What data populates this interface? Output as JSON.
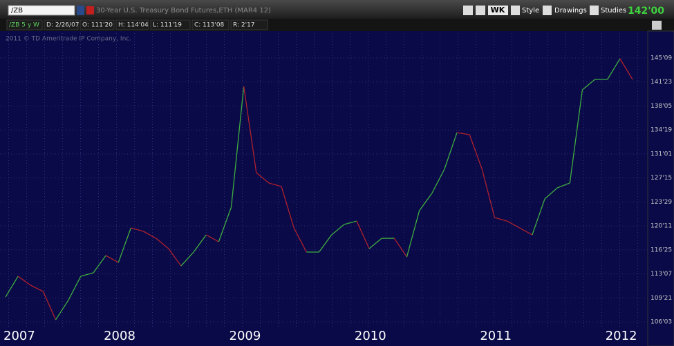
{
  "toolbar": {
    "symbol": "/ZB",
    "description": "30-Year U.S. Treasury Bond Futures,ETH (MAR4 12)",
    "buttons": [
      "WK",
      "Style",
      "Drawings",
      "Studies"
    ],
    "last_price": "142'00"
  },
  "info_bar": [
    "/ZB 5 y W",
    "D: 2/26/07",
    "O: 111'20",
    "H: 114'04",
    "L: 111'19",
    "C: 113'08",
    "R: 2'17"
  ],
  "watermark": "2011 © TD Ameritrade IP Company, Inc.",
  "chart_data": {
    "type": "line",
    "up_color": "#3fae3f",
    "down_color": "#b0202c",
    "grid": true,
    "categories": [
      "2007",
      null,
      null,
      null,
      null,
      null,
      null,
      null,
      "2008",
      null,
      null,
      null,
      null,
      null,
      null,
      null,
      null,
      null,
      "2009",
      null,
      null,
      null,
      null,
      null,
      null,
      null,
      null,
      null,
      "2010",
      null,
      null,
      null,
      null,
      null,
      null,
      null,
      null,
      null,
      "2011",
      null,
      null,
      null,
      null,
      null,
      null,
      null,
      null,
      null,
      "2012",
      null,
      null
    ],
    "values": [
      109.79,
      112.87,
      111.54,
      110.61,
      106.41,
      109.28,
      112.87,
      113.38,
      115.95,
      114.92,
      120.05,
      119.54,
      118.51,
      116.97,
      114.41,
      116.46,
      119.02,
      118.0,
      123.13,
      141.07,
      128.25,
      126.72,
      126.2,
      120.05,
      116.46,
      116.46,
      119.02,
      120.56,
      121.07,
      116.97,
      118.51,
      118.51,
      115.74,
      122.61,
      125.18,
      128.77,
      134.2,
      133.9,
      128.77,
      121.59,
      121.07,
      120.05,
      119.02,
      124.36,
      126.0,
      126.72,
      140.56,
      142.1,
      142.1,
      145.18,
      142.1
    ],
    "ylim": [
      105.49,
      149.28
    ],
    "yticks": [
      {
        "value": 145.28125,
        "label": "145'09"
      },
      {
        "value": 141.71875,
        "label": "141'23"
      },
      {
        "value": 138.15625,
        "label": "138'05"
      },
      {
        "value": 134.59375,
        "label": "134'19"
      },
      {
        "value": 131.03125,
        "label": "131'01"
      },
      {
        "value": 127.46875,
        "label": "127'15"
      },
      {
        "value": 123.90625,
        "label": "123'29"
      },
      {
        "value": 120.34375,
        "label": "120'11"
      },
      {
        "value": 116.78125,
        "label": "116'25"
      },
      {
        "value": 113.21875,
        "label": "113'07"
      },
      {
        "value": 109.65625,
        "label": "109'21"
      },
      {
        "value": 106.09375,
        "label": "106'03"
      }
    ]
  }
}
